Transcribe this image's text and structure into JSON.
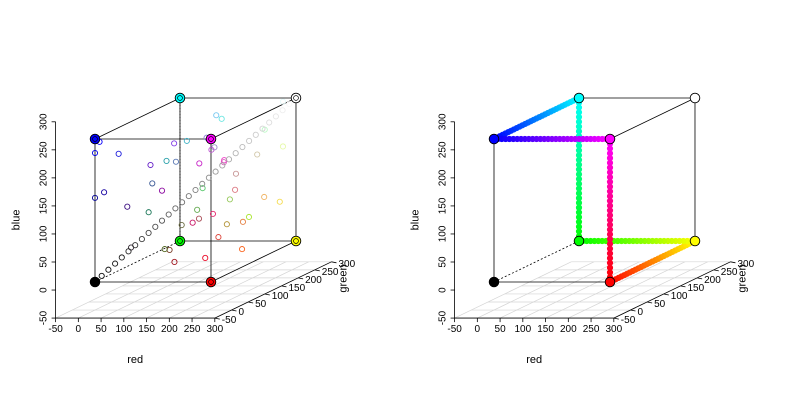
{
  "chart_data": [
    {
      "type": "scatter3d",
      "title": "",
      "xlabel": "red",
      "ylabel": "green",
      "zlabel": "blue",
      "xlim": [
        -50,
        300
      ],
      "ylim": [
        -50,
        300
      ],
      "zlim": [
        -50,
        300
      ],
      "xticks": [
        "-50",
        "0",
        "50",
        "100",
        "150",
        "200",
        "250",
        "300"
      ],
      "yticks": [
        "-50",
        "0",
        "50",
        "100",
        "150",
        "200",
        "250",
        "300"
      ],
      "zticks": [
        "-50",
        "0",
        "50",
        "100",
        "150",
        "200",
        "250",
        "300"
      ],
      "grid": true,
      "box": "unit color cube 0–255",
      "series": [
        {
          "kind": "random colors",
          "points": [
            [
              255,
              255,
              255
            ],
            [
              10,
              0,
              250
            ],
            [
              20,
              0,
              160
            ],
            [
              0,
              0,
              150
            ],
            [
              60,
              15,
              130
            ],
            [
              230,
              250,
              250
            ],
            [
              0,
              0,
              230
            ],
            [
              30,
              30,
              220
            ],
            [
              110,
              230,
              225
            ],
            [
              70,
              180,
              200
            ],
            [
              90,
              120,
              180
            ],
            [
              150,
              130,
              220
            ],
            [
              160,
              140,
              200
            ],
            [
              190,
              90,
              210
            ],
            [
              200,
              40,
              200
            ],
            [
              210,
              100,
              185
            ],
            [
              210,
              200,
              170
            ],
            [
              220,
              120,
              130
            ],
            [
              230,
              40,
              110
            ],
            [
              240,
              180,
              100
            ],
            [
              245,
              220,
              80
            ],
            [
              230,
              130,
              70
            ],
            [
              220,
              70,
              60
            ],
            [
              235,
              10,
              40
            ],
            [
              180,
              150,
              60
            ],
            [
              170,
              80,
              90
            ],
            [
              160,
              20,
              30
            ],
            [
              120,
              60,
              40
            ],
            [
              110,
              110,
              70
            ],
            [
              100,
              170,
              80
            ],
            [
              90,
              200,
              110
            ],
            [
              80,
              100,
              30
            ],
            [
              60,
              90,
              150
            ],
            [
              50,
              40,
              50
            ],
            [
              40,
              160,
              170
            ],
            [
              140,
              10,
              160
            ],
            [
              150,
              200,
              90
            ],
            [
              130,
              60,
              230
            ],
            [
              190,
              250,
              200
            ],
            [
              200,
              150,
              150
            ],
            [
              250,
              100,
              30
            ],
            [
              240,
              60,
              200
            ],
            [
              170,
              230,
              50
            ],
            [
              120,
              200,
              240
            ],
            [
              200,
              20,
              100
            ],
            [
              30,
              120,
              90
            ],
            [
              100,
              30,
              200
            ],
            [
              230,
              250,
              170
            ]
          ]
        },
        {
          "kind": "gray diagonal",
          "from": [
            0,
            0,
            0
          ],
          "to": [
            255,
            255,
            255
          ]
        }
      ],
      "corners": [
        [
          0,
          0,
          0
        ],
        [
          255,
          0,
          0
        ],
        [
          0,
          255,
          0
        ],
        [
          0,
          0,
          255
        ],
        [
          255,
          255,
          0
        ],
        [
          255,
          0,
          255
        ],
        [
          0,
          255,
          255
        ],
        [
          255,
          255,
          255
        ]
      ]
    },
    {
      "type": "scatter3d",
      "title": "",
      "xlabel": "red",
      "ylabel": "green",
      "zlabel": "blue",
      "xlim": [
        -50,
        300
      ],
      "ylim": [
        -50,
        300
      ],
      "zlim": [
        -50,
        300
      ],
      "xticks": [
        "-50",
        "0",
        "50",
        "100",
        "150",
        "200",
        "250",
        "300"
      ],
      "yticks": [
        "-50",
        "0",
        "50",
        "100",
        "150",
        "200",
        "250",
        "300"
      ],
      "zticks": [
        "-50",
        "0",
        "50",
        "100",
        "150",
        "200",
        "250",
        "300"
      ],
      "grid": true,
      "box": "unit color cube 0–255",
      "series": [
        {
          "kind": "hue path",
          "path": [
            [
              255,
              0,
              0
            ],
            [
              255,
              255,
              0
            ],
            [
              0,
              255,
              0
            ],
            [
              0,
              255,
              255
            ],
            [
              0,
              0,
              255
            ],
            [
              255,
              0,
              255
            ],
            [
              255,
              0,
              0
            ]
          ]
        }
      ],
      "corners": [
        [
          0,
          0,
          0
        ],
        [
          255,
          0,
          0
        ],
        [
          0,
          255,
          0
        ],
        [
          0,
          0,
          255
        ],
        [
          255,
          255,
          0
        ],
        [
          255,
          0,
          255
        ],
        [
          0,
          255,
          255
        ],
        [
          255,
          255,
          255
        ]
      ]
    }
  ]
}
